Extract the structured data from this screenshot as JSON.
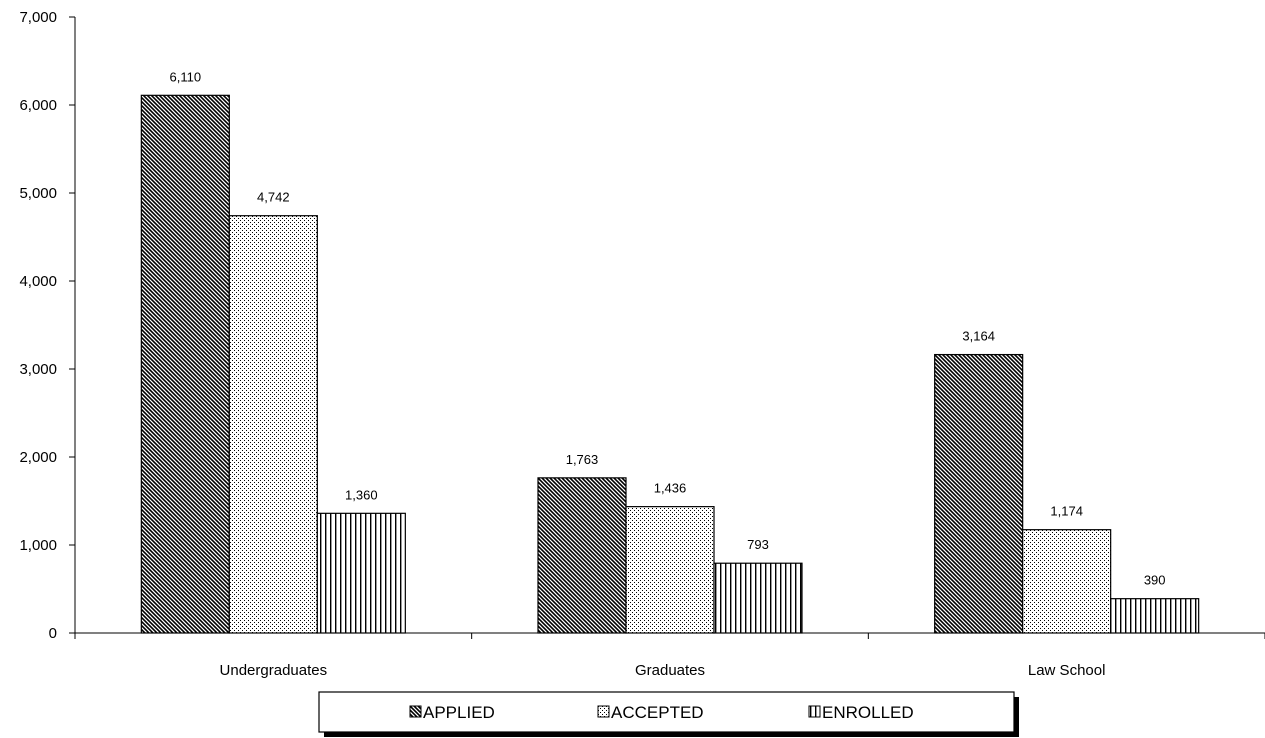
{
  "chart_data": {
    "type": "bar",
    "title": "",
    "xlabel": "",
    "ylabel": "",
    "categories": [
      "Undergraduates",
      "Graduates",
      "Law School"
    ],
    "series": [
      {
        "name": "APPLIED",
        "values": [
          6110,
          1763,
          3164
        ],
        "labels": [
          "6,110",
          "1,763",
          "3,164"
        ],
        "pattern": "diagonal-hatch"
      },
      {
        "name": "ACCEPTED",
        "values": [
          4742,
          1436,
          1174
        ],
        "labels": [
          "4,742",
          "1,436",
          "1,174"
        ],
        "pattern": "dots"
      },
      {
        "name": "ENROLLED",
        "values": [
          1360,
          793,
          390
        ],
        "labels": [
          "1,360",
          "793",
          "390"
        ],
        "pattern": "vertical-lines"
      }
    ],
    "ylim": [
      0,
      7000
    ],
    "yticks": [
      0,
      1000,
      2000,
      3000,
      4000,
      5000,
      6000,
      7000
    ],
    "ytick_labels": [
      "0",
      "1,000",
      "2,000",
      "3,000",
      "4,000",
      "5,000",
      "6,000",
      "7,000"
    ],
    "grid": false,
    "legend_position": "bottom"
  }
}
